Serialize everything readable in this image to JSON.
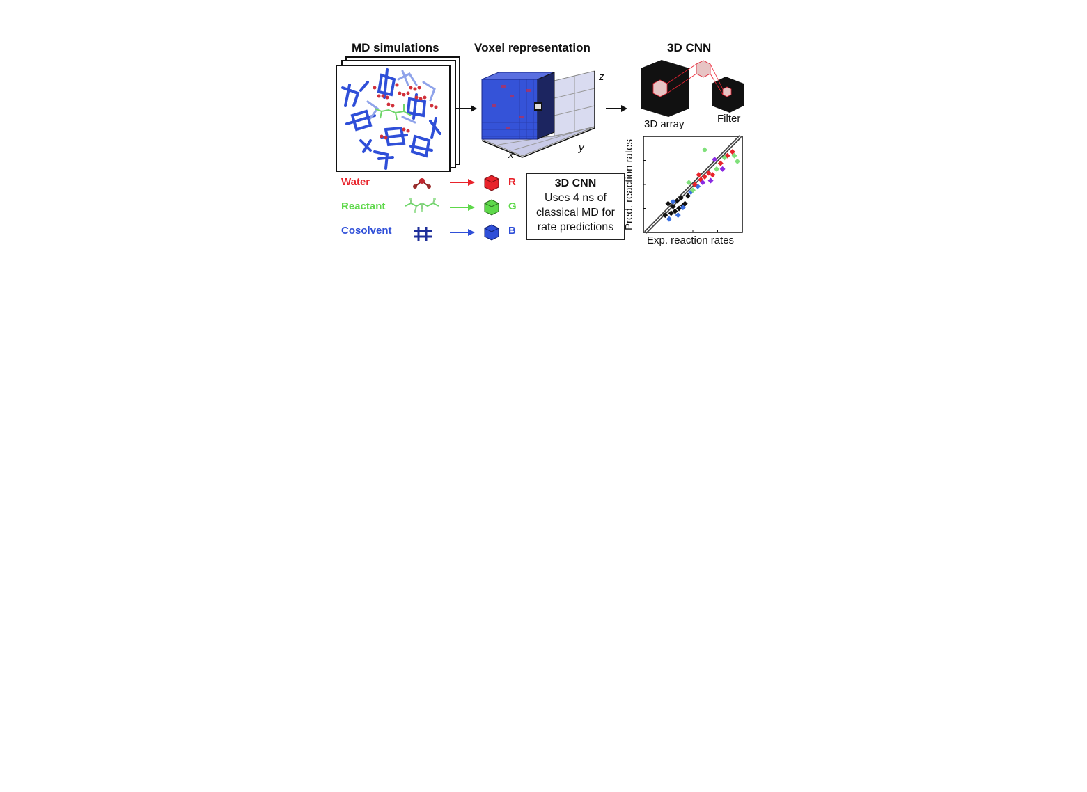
{
  "headers": {
    "md": "MD simulations",
    "voxel": "Voxel representation",
    "cnn": "3D CNN"
  },
  "axes3d": {
    "x": "x",
    "y": "y",
    "z": "z"
  },
  "legend": [
    {
      "label": "Water",
      "channel": "R",
      "color": "#e8232b"
    },
    {
      "label": "Reactant",
      "channel": "G",
      "color": "#5ed84a"
    },
    {
      "label": "Cosolvent",
      "channel": "B",
      "color": "#2f4fd8"
    }
  ],
  "info_box": {
    "title": "3D CNN",
    "line1": "Uses 4 ns of",
    "line2": "classical MD for",
    "line3": "rate predictions"
  },
  "cnn_labels": {
    "array": "3D array",
    "filter": "Filter"
  },
  "parity": {
    "xlabel": "Exp. reaction rates",
    "ylabel": "Pred. reaction rates"
  },
  "colors": {
    "accent_red": "#e8232b",
    "accent_green": "#5ed84a",
    "accent_blue": "#2f4fd8"
  },
  "chart_data": {
    "type": "scatter",
    "title": "",
    "xlabel": "Exp. reaction rates",
    "ylabel": "Pred. reaction rates",
    "xlim": [
      0,
      1
    ],
    "ylim": [
      0,
      1
    ],
    "parity_line": true,
    "series": [
      {
        "color": "#111111",
        "points": [
          [
            0.28,
            0.2
          ],
          [
            0.32,
            0.22
          ],
          [
            0.36,
            0.25
          ],
          [
            0.3,
            0.27
          ],
          [
            0.4,
            0.28
          ],
          [
            0.25,
            0.3
          ],
          [
            0.34,
            0.33
          ],
          [
            0.42,
            0.3
          ],
          [
            0.38,
            0.36
          ],
          [
            0.22,
            0.18
          ],
          [
            0.45,
            0.38
          ]
        ]
      },
      {
        "color": "#3a6fe0",
        "points": [
          [
            0.26,
            0.14
          ],
          [
            0.3,
            0.32
          ],
          [
            0.4,
            0.26
          ],
          [
            0.35,
            0.18
          ],
          [
            0.48,
            0.42
          ],
          [
            0.55,
            0.48
          ]
        ]
      },
      {
        "color": "#e8232b",
        "points": [
          [
            0.52,
            0.5
          ],
          [
            0.58,
            0.55
          ],
          [
            0.62,
            0.58
          ],
          [
            0.66,
            0.62
          ],
          [
            0.7,
            0.6
          ],
          [
            0.78,
            0.72
          ],
          [
            0.85,
            0.8
          ],
          [
            0.9,
            0.84
          ],
          [
            0.56,
            0.6
          ]
        ]
      },
      {
        "color": "#8a2be2",
        "points": [
          [
            0.72,
            0.76
          ],
          [
            0.8,
            0.66
          ],
          [
            0.6,
            0.52
          ],
          [
            0.68,
            0.54
          ]
        ]
      },
      {
        "color": "#7fe07a",
        "points": [
          [
            0.62,
            0.86
          ],
          [
            0.5,
            0.44
          ],
          [
            0.82,
            0.78
          ],
          [
            0.92,
            0.8
          ],
          [
            0.95,
            0.74
          ],
          [
            0.74,
            0.66
          ],
          [
            0.46,
            0.52
          ]
        ]
      }
    ]
  }
}
